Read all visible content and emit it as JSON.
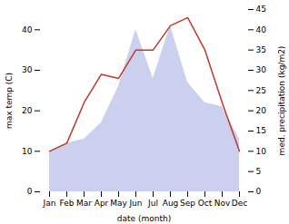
{
  "chart_data": {
    "type": "line",
    "categories": [
      "Jan",
      "Feb",
      "Mar",
      "Apr",
      "May",
      "Jun",
      "Jul",
      "Aug",
      "Sep",
      "Oct",
      "Nov",
      "Dec"
    ],
    "xlabel": "date (month)",
    "ylabel": "max temp (C)",
    "y2label": "med. precipitation (kg/m2)",
    "ylim": [
      0,
      45
    ],
    "yticks": [
      0,
      10,
      20,
      30,
      40
    ],
    "y2lim": [
      0,
      45
    ],
    "y2ticks": [
      0,
      5,
      10,
      15,
      20,
      25,
      30,
      35,
      40,
      45
    ],
    "series": [
      {
        "type": "area",
        "axis": "y2",
        "color": "#b8c0e8",
        "values": [
          10,
          12,
          13,
          17,
          26,
          40,
          28,
          41,
          27,
          22,
          21,
          13
        ]
      },
      {
        "type": "line",
        "axis": "y",
        "color": "#c0392b",
        "values": [
          10,
          12,
          22,
          29,
          28,
          35,
          35,
          41,
          43,
          35,
          22,
          10
        ]
      }
    ]
  }
}
